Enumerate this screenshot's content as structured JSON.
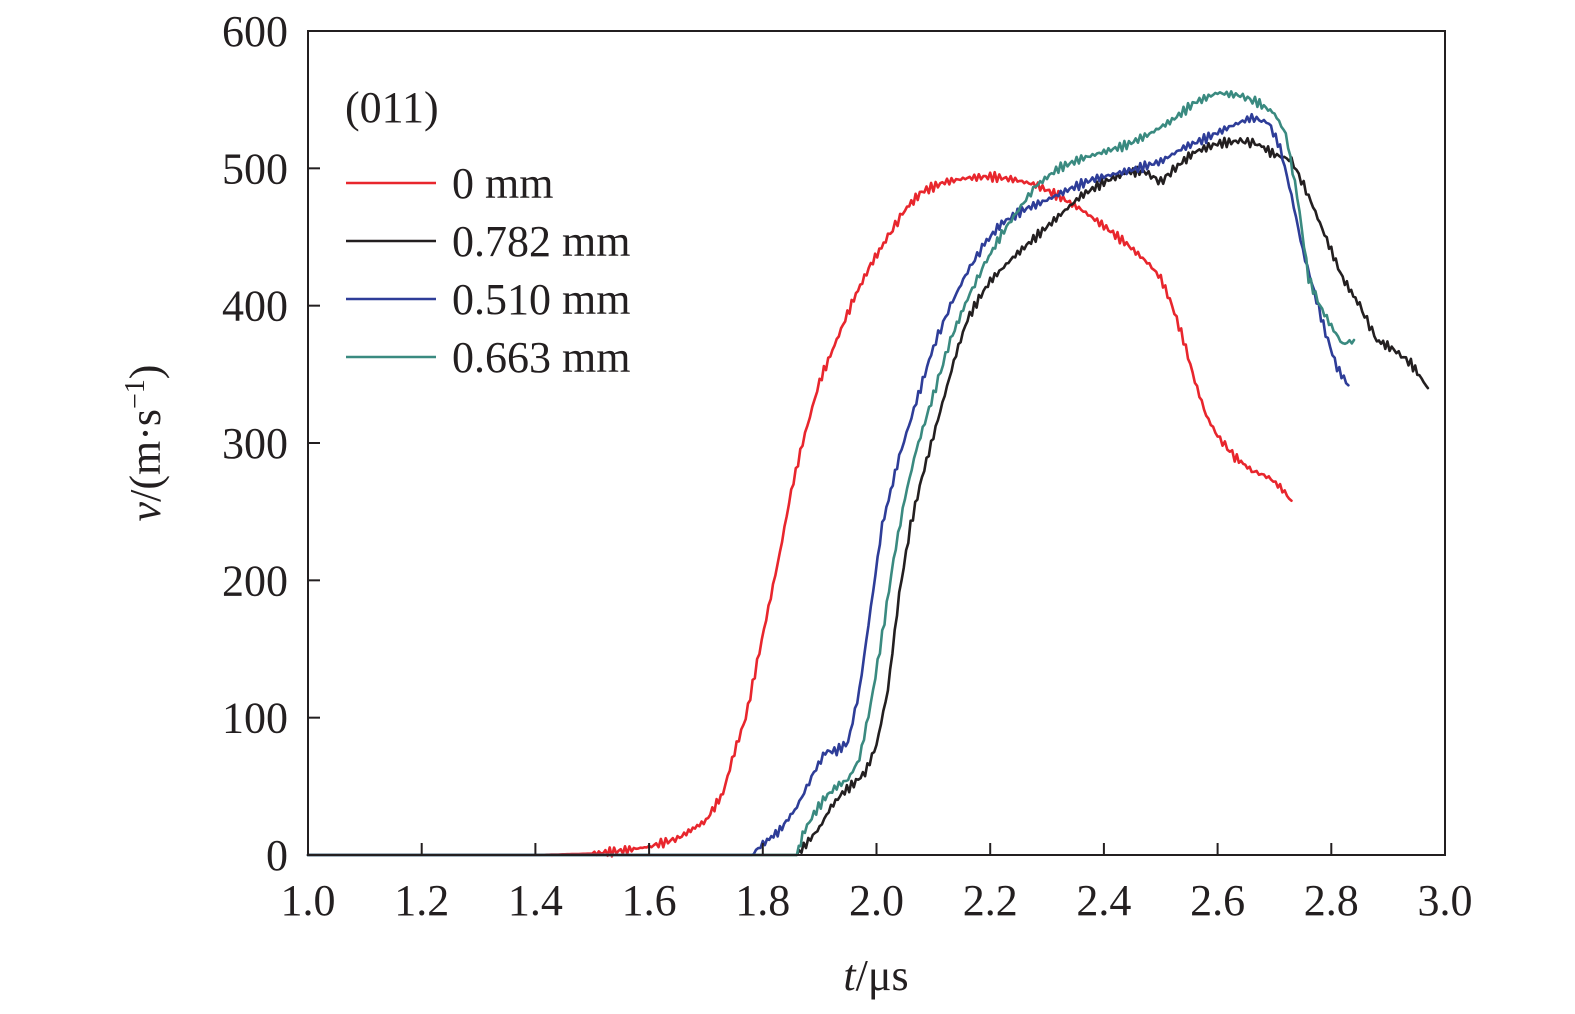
{
  "chart_data": {
    "type": "line",
    "title": "",
    "annotation": "(011)",
    "xlabel": {
      "var": "t",
      "unit": "/μs"
    },
    "ylabel": {
      "var": "v",
      "unit_prefix": "/(m·s",
      "unit_sup": "−1",
      "unit_suffix": ")"
    },
    "xlim": [
      1.0,
      3.0
    ],
    "ylim": [
      0,
      600
    ],
    "xticks": [
      "1.0",
      "1.2",
      "1.4",
      "1.6",
      "1.8",
      "2.0",
      "2.2",
      "2.4",
      "2.6",
      "2.8",
      "3.0"
    ],
    "yticks": [
      "0",
      "100",
      "200",
      "300",
      "400",
      "500",
      "600"
    ],
    "grid": false,
    "legend_position": "top-left",
    "series": [
      {
        "name": "0 mm",
        "color": "#e8262d",
        "points": [
          [
            1.0,
            0
          ],
          [
            1.1,
            0
          ],
          [
            1.2,
            0
          ],
          [
            1.3,
            0
          ],
          [
            1.4,
            0
          ],
          [
            1.5,
            1
          ],
          [
            1.55,
            3
          ],
          [
            1.6,
            6
          ],
          [
            1.65,
            12
          ],
          [
            1.7,
            25
          ],
          [
            1.73,
            45
          ],
          [
            1.75,
            75
          ],
          [
            1.77,
            100
          ],
          [
            1.79,
            140
          ],
          [
            1.81,
            180
          ],
          [
            1.83,
            220
          ],
          [
            1.85,
            265
          ],
          [
            1.87,
            300
          ],
          [
            1.9,
            345
          ],
          [
            1.93,
            375
          ],
          [
            1.96,
            405
          ],
          [
            1.99,
            430
          ],
          [
            2.02,
            450
          ],
          [
            2.05,
            470
          ],
          [
            2.08,
            483
          ],
          [
            2.12,
            490
          ],
          [
            2.16,
            493
          ],
          [
            2.2,
            494
          ],
          [
            2.24,
            492
          ],
          [
            2.28,
            488
          ],
          [
            2.32,
            480
          ],
          [
            2.36,
            470
          ],
          [
            2.4,
            458
          ],
          [
            2.44,
            445
          ],
          [
            2.48,
            430
          ],
          [
            2.5,
            420
          ],
          [
            2.52,
            400
          ],
          [
            2.54,
            375
          ],
          [
            2.56,
            345
          ],
          [
            2.58,
            320
          ],
          [
            2.6,
            305
          ],
          [
            2.63,
            290
          ],
          [
            2.66,
            280
          ],
          [
            2.69,
            275
          ],
          [
            2.71,
            268
          ],
          [
            2.73,
            258
          ]
        ]
      },
      {
        "name": "0.782 mm",
        "color": "#231f20",
        "points": [
          [
            1.0,
            0
          ],
          [
            1.86,
            0
          ],
          [
            1.88,
            10
          ],
          [
            1.9,
            20
          ],
          [
            1.92,
            35
          ],
          [
            1.94,
            45
          ],
          [
            1.96,
            52
          ],
          [
            1.98,
            60
          ],
          [
            2.0,
            80
          ],
          [
            2.02,
            120
          ],
          [
            2.04,
            190
          ],
          [
            2.06,
            240
          ],
          [
            2.08,
            275
          ],
          [
            2.1,
            305
          ],
          [
            2.12,
            335
          ],
          [
            2.14,
            365
          ],
          [
            2.16,
            390
          ],
          [
            2.18,
            405
          ],
          [
            2.2,
            418
          ],
          [
            2.24,
            435
          ],
          [
            2.28,
            450
          ],
          [
            2.32,
            465
          ],
          [
            2.36,
            480
          ],
          [
            2.4,
            490
          ],
          [
            2.44,
            497
          ],
          [
            2.47,
            498
          ],
          [
            2.5,
            490
          ],
          [
            2.53,
            502
          ],
          [
            2.56,
            512
          ],
          [
            2.6,
            518
          ],
          [
            2.64,
            520
          ],
          [
            2.67,
            518
          ],
          [
            2.7,
            510
          ],
          [
            2.73,
            506
          ],
          [
            2.76,
            480
          ],
          [
            2.78,
            460
          ],
          [
            2.8,
            440
          ],
          [
            2.82,
            420
          ],
          [
            2.85,
            400
          ],
          [
            2.88,
            375
          ],
          [
            2.91,
            368
          ],
          [
            2.94,
            358
          ],
          [
            2.97,
            340
          ]
        ]
      },
      {
        "name": "0.510 mm",
        "color": "#2e3d98",
        "points": [
          [
            1.0,
            0
          ],
          [
            1.78,
            0
          ],
          [
            1.8,
            8
          ],
          [
            1.83,
            18
          ],
          [
            1.86,
            35
          ],
          [
            1.89,
            60
          ],
          [
            1.91,
            75
          ],
          [
            1.93,
            76
          ],
          [
            1.95,
            82
          ],
          [
            1.97,
            120
          ],
          [
            1.99,
            180
          ],
          [
            2.01,
            240
          ],
          [
            2.04,
            290
          ],
          [
            2.07,
            330
          ],
          [
            2.1,
            370
          ],
          [
            2.13,
            400
          ],
          [
            2.16,
            425
          ],
          [
            2.19,
            445
          ],
          [
            2.22,
            460
          ],
          [
            2.26,
            470
          ],
          [
            2.3,
            477
          ],
          [
            2.34,
            485
          ],
          [
            2.38,
            492
          ],
          [
            2.42,
            496
          ],
          [
            2.46,
            500
          ],
          [
            2.5,
            505
          ],
          [
            2.54,
            515
          ],
          [
            2.58,
            522
          ],
          [
            2.62,
            530
          ],
          [
            2.66,
            537
          ],
          [
            2.69,
            533
          ],
          [
            2.71,
            515
          ],
          [
            2.73,
            480
          ],
          [
            2.75,
            440
          ],
          [
            2.77,
            410
          ],
          [
            2.79,
            380
          ],
          [
            2.81,
            355
          ],
          [
            2.83,
            342
          ]
        ]
      },
      {
        "name": "0.663 mm",
        "color": "#3a8a80",
        "points": [
          [
            1.0,
            0
          ],
          [
            1.86,
            0
          ],
          [
            1.87,
            15
          ],
          [
            1.89,
            30
          ],
          [
            1.91,
            42
          ],
          [
            1.93,
            50
          ],
          [
            1.95,
            55
          ],
          [
            1.97,
            70
          ],
          [
            1.99,
            110
          ],
          [
            2.01,
            160
          ],
          [
            2.03,
            215
          ],
          [
            2.05,
            260
          ],
          [
            2.07,
            295
          ],
          [
            2.1,
            335
          ],
          [
            2.13,
            375
          ],
          [
            2.16,
            405
          ],
          [
            2.19,
            430
          ],
          [
            2.22,
            452
          ],
          [
            2.25,
            470
          ],
          [
            2.28,
            487
          ],
          [
            2.32,
            500
          ],
          [
            2.36,
            507
          ],
          [
            2.4,
            512
          ],
          [
            2.44,
            517
          ],
          [
            2.48,
            525
          ],
          [
            2.52,
            535
          ],
          [
            2.56,
            548
          ],
          [
            2.6,
            555
          ],
          [
            2.64,
            553
          ],
          [
            2.67,
            548
          ],
          [
            2.7,
            540
          ],
          [
            2.72,
            525
          ],
          [
            2.74,
            480
          ],
          [
            2.76,
            420
          ],
          [
            2.78,
            400
          ],
          [
            2.8,
            385
          ],
          [
            2.82,
            372
          ],
          [
            2.84,
            375
          ]
        ]
      }
    ]
  }
}
